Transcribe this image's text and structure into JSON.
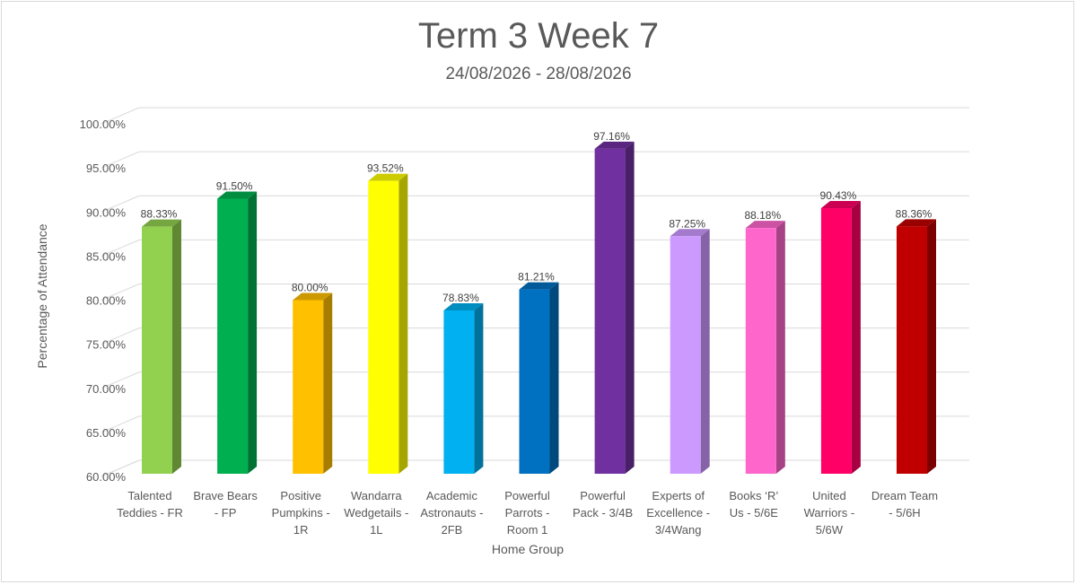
{
  "chart_data": {
    "type": "bar",
    "title": "Term 3 Week 7",
    "subtitle": "24/08/2026 - 28/08/2026",
    "xlabel": "Home Group",
    "ylabel": "Percentage of Attendance",
    "ylim": [
      60,
      100
    ],
    "ytick_step": 5,
    "ytick_labels": [
      "60.00%",
      "65.00%",
      "70.00%",
      "75.00%",
      "80.00%",
      "85.00%",
      "90.00%",
      "95.00%",
      "100.00%"
    ],
    "grid": true,
    "legend": "none",
    "categories": [
      [
        "Talented",
        "Teddies - FR"
      ],
      [
        "Brave Bears",
        "- FP"
      ],
      [
        "Positive",
        "Pumpkins -",
        "1R"
      ],
      [
        "Wandarra",
        "Wedgetails -",
        "1L"
      ],
      [
        "Academic",
        "Astronauts -",
        "2FB"
      ],
      [
        "Powerful",
        "Parrots -",
        "Room 1"
      ],
      [
        "Powerful",
        "Pack - 3/4B"
      ],
      [
        "Experts of",
        "Excellence -",
        "3/4Wang"
      ],
      [
        "Books ‘R’",
        "Us - 5/6E"
      ],
      [
        "United",
        "Warriors -",
        "5/6W"
      ],
      [
        "Dream Team",
        "- 5/6H"
      ]
    ],
    "values": [
      88.33,
      91.5,
      80.0,
      93.52,
      78.83,
      81.21,
      97.16,
      87.25,
      88.18,
      90.43,
      88.36
    ],
    "data_labels": [
      "88.33%",
      "91.50%",
      "80.00%",
      "93.52%",
      "78.83%",
      "81.21%",
      "97.16%",
      "87.25%",
      "88.18%",
      "90.43%",
      "88.36%"
    ],
    "colors": [
      "#92d050",
      "#00b050",
      "#ffc000",
      "#ffff00",
      "#00b0f0",
      "#0070c0",
      "#7030a0",
      "#cc99ff",
      "#ff66cc",
      "#ff0066",
      "#c00000"
    ]
  }
}
